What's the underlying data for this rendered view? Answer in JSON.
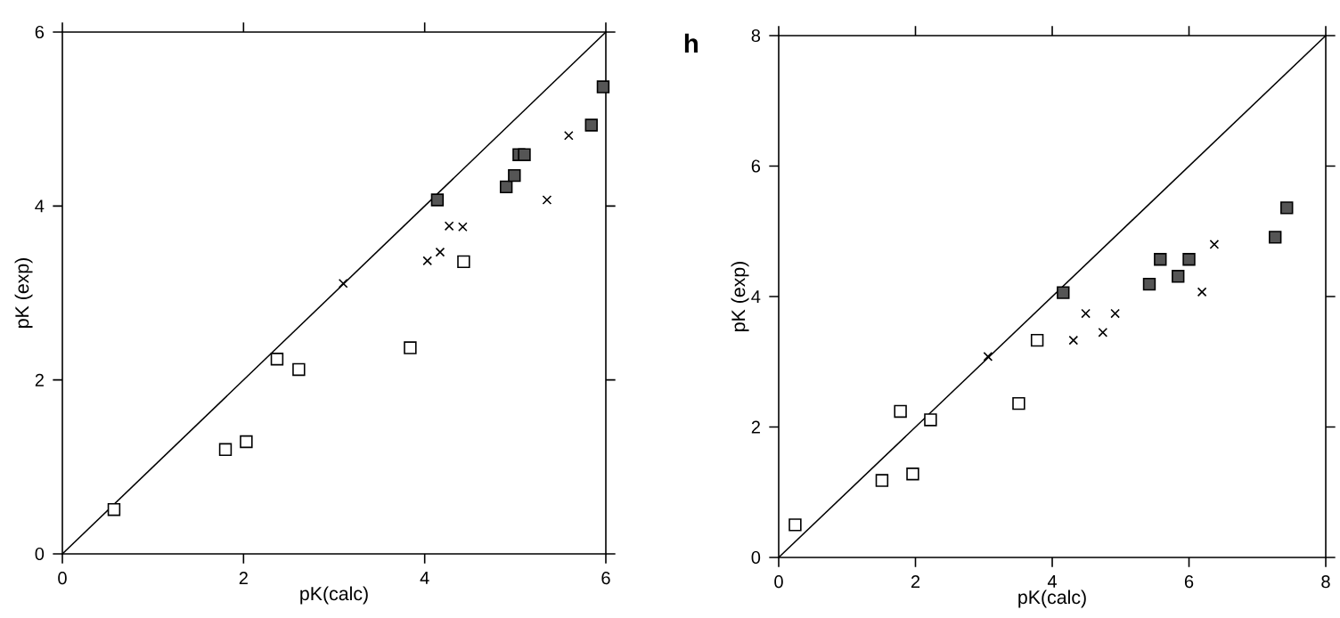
{
  "chart_data": [
    {
      "type": "scatter",
      "xlabel": "pK(calc)",
      "ylabel": "pK (exp)",
      "xlim": [
        0,
        6
      ],
      "ylim": [
        0,
        6
      ],
      "xticks": [
        0,
        2,
        4,
        6
      ],
      "yticks": [
        0,
        2,
        4,
        6
      ],
      "series": [
        {
          "color": "#ffffff",
          "marker": "square",
          "x": [
            0.57,
            1.8,
            2.03,
            2.37,
            2.61,
            3.84,
            4.43
          ],
          "values": [
            0.51,
            1.2,
            1.29,
            2.24,
            2.12,
            2.37,
            3.36
          ]
        },
        {
          "color": "#000000",
          "marker": "cross",
          "x": [
            3.1,
            4.03,
            4.17,
            4.27,
            4.42,
            5.35,
            5.59
          ],
          "values": [
            3.11,
            3.37,
            3.47,
            3.77,
            3.76,
            4.07,
            4.81
          ]
        },
        {
          "color": "#555555",
          "marker": "square",
          "x": [
            4.14,
            4.9,
            4.99,
            5.04,
            5.1,
            5.84,
            5.97
          ],
          "values": [
            4.07,
            4.22,
            4.35,
            4.59,
            4.59,
            4.93,
            5.37
          ]
        },
        {
          "type": "line",
          "color": "#000000",
          "marker": "none",
          "x": [
            0,
            6
          ],
          "values": [
            0,
            6
          ]
        }
      ]
    },
    {
      "type": "scatter",
      "xlabel": "pK(calc)",
      "ylabel": "pK (exp)",
      "xlim": [
        0,
        8
      ],
      "ylim": [
        0,
        8
      ],
      "xticks": [
        0,
        2,
        4,
        6,
        8
      ],
      "yticks": [
        0,
        2,
        4,
        6,
        8
      ],
      "annotations": [
        "h"
      ],
      "series": [
        {
          "color": "#ffffff",
          "marker": "square",
          "x": [
            0.24,
            1.51,
            1.78,
            1.96,
            2.22,
            3.51,
            3.78
          ],
          "values": [
            0.5,
            1.18,
            2.24,
            1.28,
            2.11,
            2.36,
            3.33
          ]
        },
        {
          "color": "#000000",
          "marker": "cross",
          "x": [
            3.06,
            4.31,
            4.49,
            4.74,
            4.92,
            6.19,
            6.37
          ],
          "values": [
            3.08,
            3.33,
            3.74,
            3.45,
            3.74,
            4.07,
            4.8
          ]
        },
        {
          "color": "#555555",
          "marker": "square",
          "x": [
            4.16,
            5.42,
            5.58,
            5.84,
            6.0,
            7.26,
            7.43
          ],
          "values": [
            4.06,
            4.19,
            4.57,
            4.31,
            4.57,
            4.91,
            5.36
          ]
        },
        {
          "type": "line",
          "color": "#000000",
          "marker": "none",
          "x": [
            0,
            8
          ],
          "values": [
            0,
            8
          ]
        }
      ]
    }
  ]
}
